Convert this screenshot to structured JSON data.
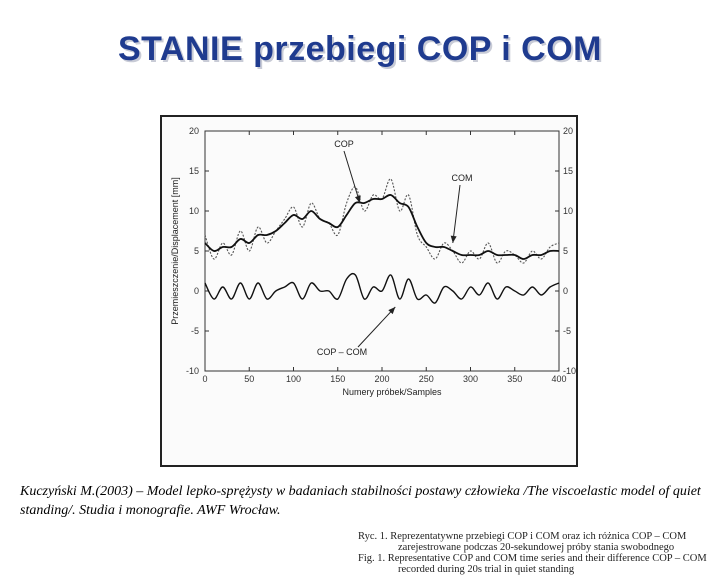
{
  "slide": {
    "title": "STANIE przebiegi COP i COM",
    "citation": "Kuczyński M.(2003) – Model lepko-sprężysty w badaniach stabilności postawy człowieka /The viscoelastic model of quiet standing/. Studia i monografie. AWF Wrocław."
  },
  "figure": {
    "caption_lines": [
      "Ryc. 1. Reprezentatywne przebiegi COP i COM oraz ich różnica COP – COM",
      "zarejestrowane podczas 20-sekundowej próby stania swobodnego",
      "Fig. 1. Representative COP and COM time series and their difference COP – COM",
      "recorded during 20s trial in quiet standing"
    ]
  },
  "chart_data": {
    "type": "line",
    "xlabel": "Numery próbek/Samples",
    "ylabel": "Przemieszczenie/Displacement [mm]",
    "xlim": [
      0,
      400
    ],
    "ylim": [
      -10,
      20
    ],
    "x_ticks": [
      0,
      50,
      100,
      150,
      200,
      250,
      300,
      350,
      400
    ],
    "y_ticks": [
      -10,
      -5,
      0,
      5,
      10,
      15,
      20
    ],
    "y_ticks_right": [
      -10,
      -5,
      0,
      5,
      10,
      15,
      20
    ],
    "grid": false,
    "annotations": [
      {
        "text": "COP",
        "points_to_x": 175,
        "points_to_y": 11
      },
      {
        "text": "COM",
        "points_to_x": 280,
        "points_to_y": 6
      },
      {
        "text": "COP – COM",
        "points_to_x": 215,
        "points_to_y": -2
      }
    ],
    "series": [
      {
        "name": "COP",
        "x": [
          0,
          10,
          20,
          30,
          40,
          50,
          60,
          70,
          80,
          90,
          100,
          110,
          120,
          130,
          140,
          150,
          160,
          170,
          180,
          190,
          200,
          210,
          220,
          230,
          240,
          250,
          260,
          270,
          280,
          290,
          300,
          310,
          320,
          330,
          340,
          350,
          360,
          370,
          380,
          390,
          400
        ],
        "values": [
          7,
          4,
          6,
          4.5,
          7.5,
          5,
          8,
          6,
          7.5,
          9,
          10.5,
          8,
          11,
          9,
          8.5,
          7,
          11,
          13,
          10,
          12,
          11.5,
          14,
          10,
          12,
          7,
          5.5,
          4,
          6,
          5,
          3.5,
          5,
          4,
          6,
          3.5,
          5,
          4.5,
          3.5,
          5,
          4,
          5.5,
          6
        ]
      },
      {
        "name": "COM",
        "x": [
          0,
          10,
          20,
          30,
          40,
          50,
          60,
          70,
          80,
          90,
          100,
          110,
          120,
          130,
          140,
          150,
          160,
          170,
          180,
          190,
          200,
          210,
          220,
          230,
          240,
          250,
          260,
          270,
          280,
          290,
          300,
          310,
          320,
          330,
          340,
          350,
          360,
          370,
          380,
          390,
          400
        ],
        "values": [
          6,
          5,
          5.5,
          5.5,
          6.5,
          6,
          7,
          7,
          7.5,
          8.5,
          9.5,
          9,
          10,
          9,
          8.5,
          8,
          9.5,
          11,
          11,
          11.5,
          11.5,
          12,
          11,
          10.5,
          8,
          6,
          5.5,
          5.5,
          5,
          4.5,
          4.5,
          4.5,
          5,
          4.5,
          4.5,
          4.5,
          4,
          4.5,
          4.5,
          5,
          5
        ]
      },
      {
        "name": "COP – COM",
        "x": [
          0,
          10,
          20,
          30,
          40,
          50,
          60,
          70,
          80,
          90,
          100,
          110,
          120,
          130,
          140,
          150,
          160,
          170,
          180,
          190,
          200,
          210,
          220,
          230,
          240,
          250,
          260,
          270,
          280,
          290,
          300,
          310,
          320,
          330,
          340,
          350,
          360,
          370,
          380,
          390,
          400
        ],
        "values": [
          1,
          -1,
          0.5,
          -1,
          1,
          -1,
          1,
          -1,
          0,
          0.5,
          1,
          -1,
          1,
          0,
          0,
          -1,
          1.5,
          2,
          -1,
          0.5,
          0,
          2,
          -1,
          1.5,
          -1,
          -0.5,
          -1.5,
          0.5,
          0,
          -1,
          0.5,
          -0.5,
          1,
          -1,
          0.5,
          0,
          -0.5,
          0.5,
          -0.5,
          0.5,
          1
        ]
      }
    ]
  }
}
